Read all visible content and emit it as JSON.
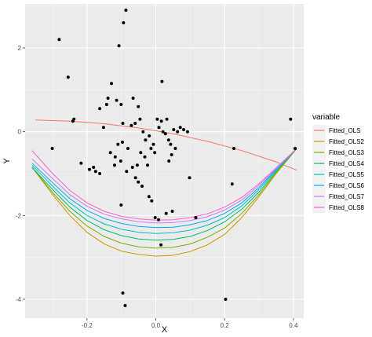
{
  "chart_data": {
    "type": "scatter",
    "xlabel": "X",
    "ylabel": "Y",
    "xlim": [
      -0.38,
      0.43
    ],
    "ylim": [
      -4.45,
      3.05
    ],
    "x_ticks": [
      -0.2,
      0.0,
      0.2,
      0.4
    ],
    "x_tick_labels": [
      "-0.2",
      "0.0",
      "0.2",
      "0.4"
    ],
    "y_ticks": [
      -4,
      -2,
      0,
      2
    ],
    "y_tick_labels": [
      "-4",
      "-2",
      "0",
      "2"
    ],
    "grid": true,
    "background_color": "#ebebeb",
    "legend": {
      "title": "variable",
      "position": "right"
    },
    "points": {
      "color": "#000000",
      "x": [
        -0.087,
        -0.094,
        -0.281,
        -0.107,
        -0.255,
        -0.241,
        -0.238,
        -0.217,
        -0.193,
        -0.181,
        -0.163,
        -0.143,
        -0.139,
        -0.129,
        -0.114,
        -0.101,
        -0.096,
        -0.071,
        -0.06,
        -0.046,
        -0.037,
        -0.03,
        -0.019,
        -0.007,
        0.004,
        0.016,
        0.032,
        0.037,
        0.043,
        0.052,
        0.063,
        -0.152,
        -0.132,
        -0.12,
        -0.102,
        -0.085,
        -0.068,
        -0.059,
        -0.051,
        -0.044,
        -0.032,
        -0.024,
        -0.014,
        -0.003,
        0.009,
        0.021,
        0.028,
        0.038,
        0.046,
        0.057,
        0.071,
        0.081,
        0.092,
        -0.301,
        -0.175,
        -0.163,
        -0.118,
        -0.11,
        -0.097,
        -0.081,
        -0.054,
        -0.04,
        -0.02,
        -0.012,
        -0.002,
        0.008,
        0.015,
        0.03,
        0.048,
        0.098,
        0.116,
        0.227,
        0.222,
        0.392,
        0.405,
        0.018,
        -0.096,
        -0.089,
        -0.101,
        0.203,
        -0.051,
        -0.066
      ],
      "y": [
        2.9,
        2.6,
        2.2,
        2.05,
        1.3,
        0.25,
        0.3,
        -0.75,
        -0.9,
        -0.85,
        0.55,
        0.65,
        0.8,
        1.15,
        0.75,
        0.65,
        0.2,
        0.15,
        0.2,
        0.3,
        0.0,
        -0.2,
        -0.1,
        -0.3,
        0.3,
        0.25,
        0.3,
        -0.2,
        -0.3,
        0.05,
        0.0,
        0.1,
        -0.5,
        -0.8,
        -0.7,
        -0.95,
        -0.85,
        -1.1,
        -1.2,
        -0.5,
        -0.6,
        -0.8,
        -0.4,
        -0.5,
        0.1,
        0.0,
        -0.05,
        -0.7,
        -0.55,
        -0.4,
        0.1,
        0.05,
        0.0,
        -0.4,
        -0.95,
        -1.0,
        -0.6,
        -0.3,
        -0.25,
        -0.4,
        -0.8,
        -1.3,
        -1.55,
        -1.65,
        -2.05,
        -2.1,
        -2.7,
        -1.95,
        -1.9,
        -1.1,
        -2.05,
        -0.4,
        -1.25,
        0.3,
        -0.4,
        1.2,
        -3.85,
        -4.15,
        -1.75,
        -4.0,
        0.6,
        0.8
      ]
    },
    "series": [
      {
        "name": "Fitted_OLS",
        "color": "#f8766d",
        "x": [
          -0.35,
          -0.25,
          -0.15,
          -0.05,
          0.05,
          0.15,
          0.25,
          0.35,
          0.41
        ],
        "y": [
          0.28,
          0.25,
          0.19,
          0.09,
          -0.05,
          -0.23,
          -0.45,
          -0.72,
          -0.92
        ]
      },
      {
        "name": "Fitted_OLS2",
        "color": "#cd9600",
        "x": [
          -0.36,
          -0.3,
          -0.25,
          -0.2,
          -0.15,
          -0.1,
          -0.05,
          0.0,
          0.05,
          0.1,
          0.15,
          0.2,
          0.25,
          0.3,
          0.35,
          0.41
        ],
        "y": [
          -0.85,
          -1.5,
          -2.0,
          -2.4,
          -2.68,
          -2.85,
          -2.93,
          -2.97,
          -2.95,
          -2.86,
          -2.7,
          -2.45,
          -2.05,
          -1.55,
          -1.0,
          -0.4
        ]
      },
      {
        "name": "Fitted_OLS3",
        "color": "#7cae00",
        "x": [
          -0.36,
          -0.3,
          -0.25,
          -0.2,
          -0.15,
          -0.1,
          -0.05,
          0.0,
          0.05,
          0.1,
          0.15,
          0.2,
          0.25,
          0.3,
          0.35,
          0.41
        ],
        "y": [
          -0.85,
          -1.45,
          -1.9,
          -2.25,
          -2.5,
          -2.66,
          -2.75,
          -2.78,
          -2.76,
          -2.68,
          -2.52,
          -2.3,
          -1.95,
          -1.5,
          -0.98,
          -0.4
        ]
      },
      {
        "name": "Fitted_OLS4",
        "color": "#00be67",
        "x": [
          -0.36,
          -0.3,
          -0.25,
          -0.2,
          -0.15,
          -0.1,
          -0.05,
          0.0,
          0.05,
          0.1,
          0.15,
          0.2,
          0.25,
          0.3,
          0.35,
          0.41
        ],
        "y": [
          -0.85,
          -1.38,
          -1.8,
          -2.12,
          -2.34,
          -2.48,
          -2.56,
          -2.59,
          -2.57,
          -2.5,
          -2.36,
          -2.15,
          -1.85,
          -1.44,
          -0.95,
          -0.4
        ]
      },
      {
        "name": "Fitted_OLS5",
        "color": "#00bfc4",
        "x": [
          -0.36,
          -0.3,
          -0.25,
          -0.2,
          -0.15,
          -0.1,
          -0.05,
          0.0,
          0.05,
          0.1,
          0.15,
          0.2,
          0.25,
          0.3,
          0.35,
          0.41
        ],
        "y": [
          -0.8,
          -1.3,
          -1.7,
          -2.0,
          -2.2,
          -2.33,
          -2.4,
          -2.43,
          -2.41,
          -2.35,
          -2.23,
          -2.05,
          -1.77,
          -1.38,
          -0.92,
          -0.4
        ]
      },
      {
        "name": "Fitted_OLS6",
        "color": "#00a9ff",
        "x": [
          -0.36,
          -0.3,
          -0.25,
          -0.2,
          -0.15,
          -0.1,
          -0.05,
          0.0,
          0.05,
          0.1,
          0.15,
          0.2,
          0.25,
          0.3,
          0.35,
          0.41
        ],
        "y": [
          -0.75,
          -1.22,
          -1.6,
          -1.88,
          -2.07,
          -2.19,
          -2.26,
          -2.29,
          -2.28,
          -2.22,
          -2.12,
          -1.95,
          -1.7,
          -1.33,
          -0.9,
          -0.4
        ]
      },
      {
        "name": "Fitted_OLS7",
        "color": "#c77cff",
        "x": [
          -0.36,
          -0.3,
          -0.25,
          -0.2,
          -0.15,
          -0.1,
          -0.05,
          0.0,
          0.05,
          0.1,
          0.15,
          0.2,
          0.25,
          0.3,
          0.35,
          0.41
        ],
        "y": [
          -0.65,
          -1.12,
          -1.5,
          -1.78,
          -1.97,
          -2.08,
          -2.15,
          -2.18,
          -2.17,
          -2.12,
          -2.03,
          -1.87,
          -1.63,
          -1.28,
          -0.88,
          -0.4
        ]
      },
      {
        "name": "Fitted_OLS8",
        "color": "#ff61cc",
        "x": [
          -0.36,
          -0.3,
          -0.25,
          -0.2,
          -0.15,
          -0.1,
          -0.05,
          0.0,
          0.05,
          0.1,
          0.15,
          0.2,
          0.25,
          0.3,
          0.35,
          0.41
        ],
        "y": [
          -0.45,
          -1.0,
          -1.4,
          -1.7,
          -1.9,
          -2.02,
          -2.08,
          -2.11,
          -2.1,
          -2.05,
          -1.96,
          -1.8,
          -1.57,
          -1.24,
          -0.86,
          -0.4
        ]
      }
    ]
  }
}
